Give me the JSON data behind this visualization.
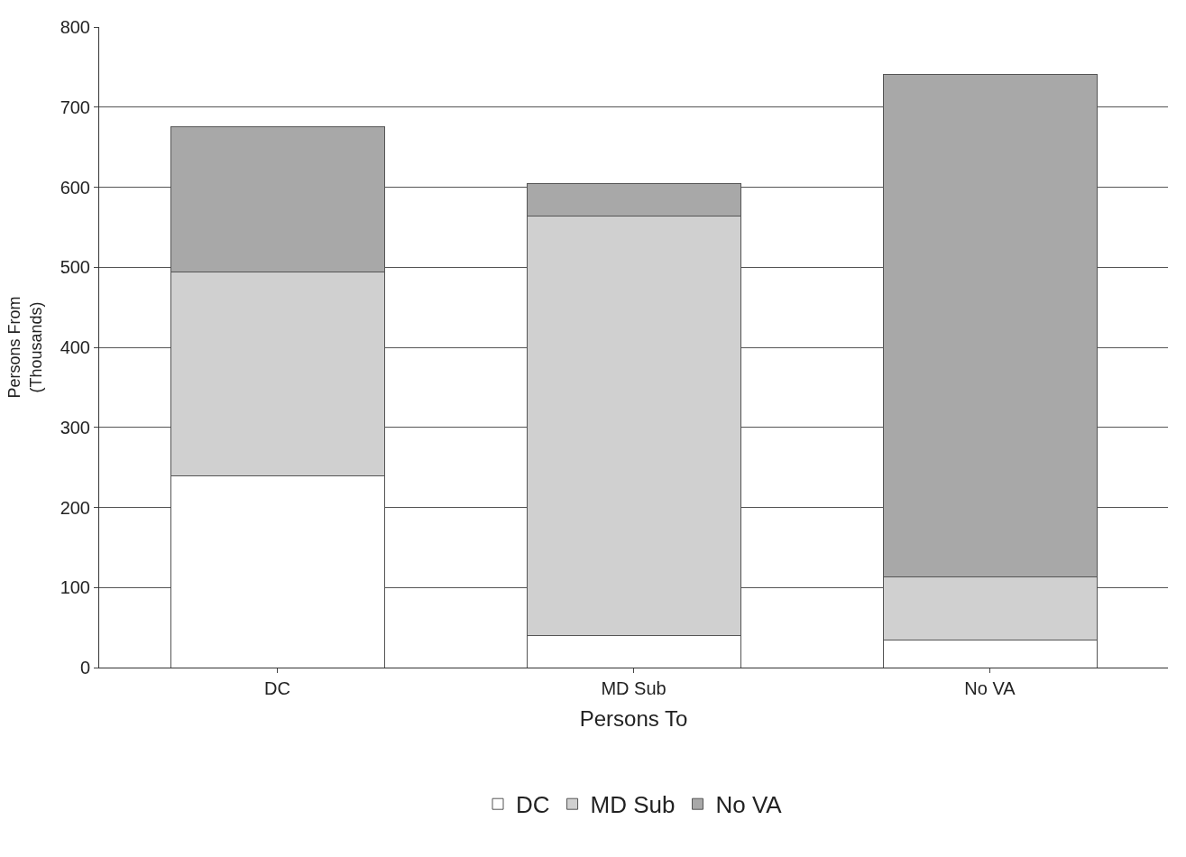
{
  "chart_data": {
    "type": "bar",
    "stacked": true,
    "xlabel": "Persons To",
    "ylabel": "Persons From\n(Thousands)",
    "categories": [
      "DC",
      "MD Sub",
      "No VA"
    ],
    "series": [
      {
        "name": "DC",
        "color": "#ffffff",
        "values": [
          240,
          40,
          34
        ]
      },
      {
        "name": "MD Sub",
        "color": "#d0d0d0",
        "values": [
          254,
          524,
          79
        ]
      },
      {
        "name": "No VA",
        "color": "#a8a8a8",
        "values": [
          181,
          40,
          628
        ]
      }
    ],
    "ylim": [
      0,
      800
    ],
    "yticks": [
      0,
      100,
      200,
      300,
      400,
      500,
      600,
      700,
      800
    ],
    "grid": "y",
    "legend": "bottom"
  }
}
